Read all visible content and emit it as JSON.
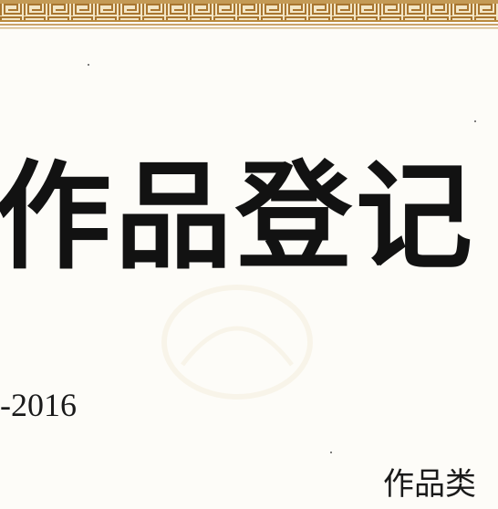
{
  "certificate": {
    "title": "作品登记",
    "registration_number": "-2016",
    "category_label": "作品类"
  },
  "colors": {
    "border_gold": "#b98a3e",
    "border_dark": "#8a5a1e",
    "ink": "#121212",
    "paper": "#fdfcf8"
  }
}
